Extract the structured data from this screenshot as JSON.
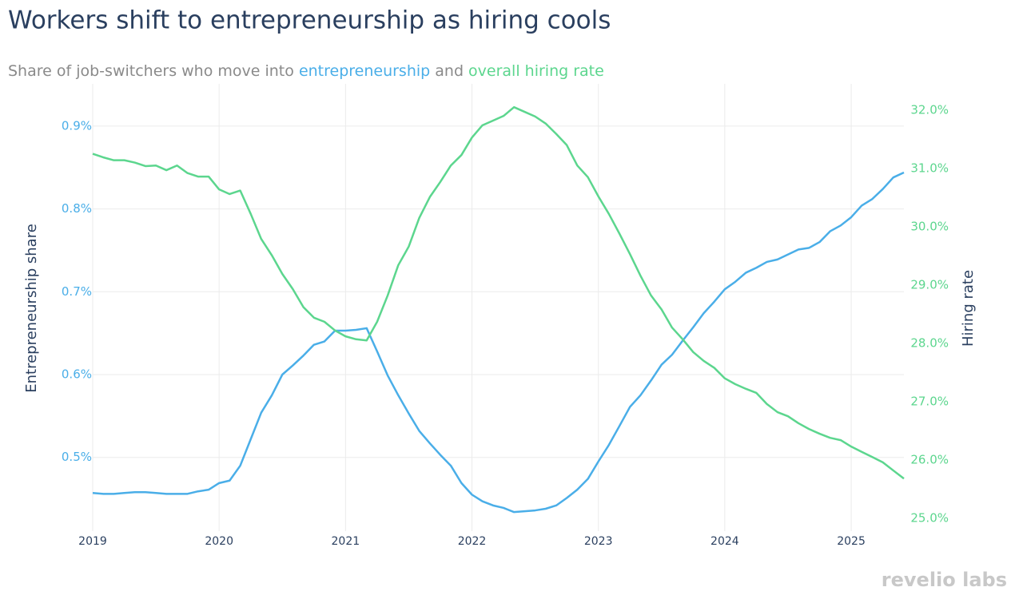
{
  "chart_data": {
    "type": "line",
    "title": "Workers shift to entrepreneurship as hiring cools",
    "subtitle_parts": [
      {
        "text": "Share of job-switchers who move into "
      },
      {
        "text": "entrepreneurship",
        "color": "#4aaee8"
      },
      {
        "text": " and "
      },
      {
        "text": "overall hiring rate",
        "color": "#5cd68e"
      }
    ],
    "y_axis_label": "Entrepreneurship share",
    "y2_axis_label": "Hiring rate",
    "watermark": "revelio labs",
    "x": [
      2019,
      2019.083,
      2019.167,
      2019.25,
      2019.333,
      2019.417,
      2019.5,
      2019.583,
      2019.667,
      2019.75,
      2019.833,
      2019.917,
      2020,
      2020.083,
      2020.167,
      2020.25,
      2020.333,
      2020.417,
      2020.5,
      2020.583,
      2020.667,
      2020.75,
      2020.833,
      2020.917,
      2021,
      2021.083,
      2021.167,
      2021.25,
      2021.333,
      2021.417,
      2021.5,
      2021.583,
      2021.667,
      2021.75,
      2021.833,
      2021.917,
      2022,
      2022.083,
      2022.167,
      2022.25,
      2022.333,
      2022.417,
      2022.5,
      2022.583,
      2022.667,
      2022.75,
      2022.833,
      2022.917,
      2023,
      2023.083,
      2023.167,
      2023.25,
      2023.333,
      2023.417,
      2023.5,
      2023.583,
      2023.667,
      2023.75,
      2023.833,
      2023.917,
      2024,
      2024.083,
      2024.167,
      2024.25,
      2024.333,
      2024.417,
      2024.5,
      2024.583,
      2024.667,
      2024.75,
      2024.833,
      2024.917,
      2025,
      2025.083,
      2025.167,
      2025.25,
      2025.333,
      2025.417
    ],
    "series": [
      {
        "color": "#4aaee8",
        "values": [
          0.457,
          0.456,
          0.456,
          0.457,
          0.458,
          0.458,
          0.457,
          0.456,
          0.456,
          0.456,
          0.459,
          0.461,
          0.469,
          0.472,
          0.49,
          0.522,
          0.554,
          0.575,
          0.6,
          0.611,
          0.623,
          0.636,
          0.64,
          0.653,
          0.653,
          0.654,
          0.656,
          0.628,
          0.599,
          0.575,
          0.553,
          0.532,
          0.517,
          0.503,
          0.49,
          0.469,
          0.455,
          0.447,
          0.442,
          0.439,
          0.434,
          0.435,
          0.436,
          0.438,
          0.442,
          0.451,
          0.461,
          0.474,
          0.495,
          0.515,
          0.538,
          0.561,
          0.575,
          0.593,
          0.612,
          0.624,
          0.641,
          0.657,
          0.674,
          0.688,
          0.703,
          0.712,
          0.723,
          0.729,
          0.736,
          0.739,
          0.745,
          0.751,
          0.753,
          0.76,
          0.773,
          0.78,
          0.79,
          0.804,
          0.812,
          0.824,
          0.838,
          0.844
        ]
      },
      {
        "color": "#5cd68e",
        "axis": "y2",
        "values": [
          31.25,
          31.19,
          31.14,
          31.14,
          31.1,
          31.04,
          31.05,
          30.97,
          31.05,
          30.92,
          30.86,
          30.86,
          30.64,
          30.56,
          30.62,
          30.22,
          29.79,
          29.51,
          29.19,
          28.93,
          28.62,
          28.44,
          28.37,
          28.22,
          28.12,
          28.07,
          28.05,
          28.37,
          28.82,
          29.34,
          29.66,
          30.15,
          30.51,
          30.77,
          31.05,
          31.23,
          31.53,
          31.74,
          31.82,
          31.9,
          32.05,
          31.97,
          31.89,
          31.77,
          31.59,
          31.4,
          31.05,
          30.85,
          30.52,
          30.22,
          29.88,
          29.53,
          29.16,
          28.82,
          28.58,
          28.27,
          28.07,
          27.85,
          27.7,
          27.58,
          27.4,
          27.3,
          27.22,
          27.15,
          26.96,
          26.82,
          26.75,
          26.63,
          26.53,
          26.45,
          26.38,
          26.34,
          26.23,
          26.14,
          26.05,
          25.96,
          25.82,
          25.68
        ]
      }
    ],
    "xlim": [
      2019,
      2025.417
    ],
    "xticks": [
      2019,
      2020,
      2021,
      2022,
      2023,
      2024,
      2025
    ],
    "ylim": [
      0.411,
      0.951
    ],
    "yticks": [
      {
        "value": 0.5,
        "label": "0.5%"
      },
      {
        "value": 0.6,
        "label": "0.6%"
      },
      {
        "value": 0.7,
        "label": "0.7%"
      },
      {
        "value": 0.8,
        "label": "0.8%"
      },
      {
        "value": 0.9,
        "label": "0.9%"
      }
    ],
    "y2lim": [
      24.78,
      32.45
    ],
    "y2ticks": [
      {
        "value": 25,
        "label": "25.0%"
      },
      {
        "value": 26,
        "label": "26.0%"
      },
      {
        "value": 27,
        "label": "27.0%"
      },
      {
        "value": 28,
        "label": "28.0%"
      },
      {
        "value": 29,
        "label": "29.0%"
      },
      {
        "value": 30,
        "label": "30.0%"
      },
      {
        "value": 31,
        "label": "31.0%"
      },
      {
        "value": 32,
        "label": "32.0%"
      }
    ],
    "grid": true
  }
}
